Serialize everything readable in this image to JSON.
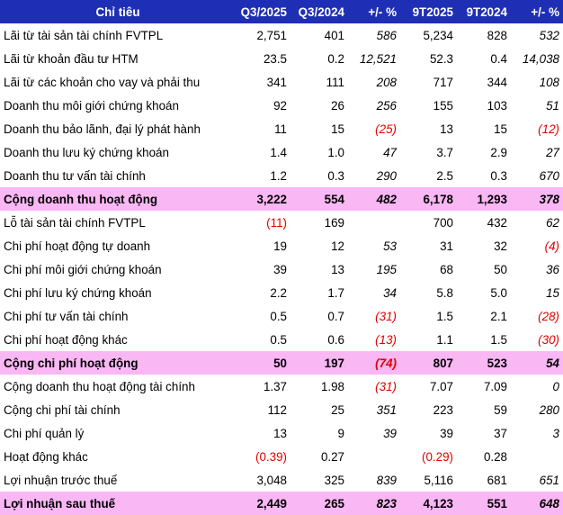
{
  "table": {
    "headers": [
      "Chỉ tiêu",
      "Q3/2025",
      "Q3/2024",
      "+/- %",
      "9T2025",
      "9T2024",
      "+/- %"
    ],
    "rows": [
      {
        "label": "Lãi từ tài sản tài chính FVTPL",
        "total": false,
        "values": [
          "2,751",
          "401",
          "586",
          "5,234",
          "828",
          "532"
        ]
      },
      {
        "label": "Lãi từ khoản đầu tư HTM",
        "total": false,
        "values": [
          "23.5",
          "0.2",
          "12,521",
          "52.3",
          "0.4",
          "14,038"
        ]
      },
      {
        "label": "Lãi từ các khoản cho vay và phải thu",
        "total": false,
        "values": [
          "341",
          "111",
          "208",
          "717",
          "344",
          "108"
        ]
      },
      {
        "label": "Doanh thu môi giới chứng khoán",
        "total": false,
        "values": [
          "92",
          "26",
          "256",
          "155",
          "103",
          "51"
        ]
      },
      {
        "label": "Doanh thu bảo lãnh, đại lý phát hành",
        "total": false,
        "values": [
          "11",
          "15",
          "(25)",
          "13",
          "15",
          "(12)"
        ]
      },
      {
        "label": "Doanh thu lưu ký chứng khoán",
        "total": false,
        "values": [
          "1.4",
          "1.0",
          "47",
          "3.7",
          "2.9",
          "27"
        ]
      },
      {
        "label": "Doanh thu tư vấn tài chính",
        "total": false,
        "values": [
          "1.2",
          "0.3",
          "290",
          "2.5",
          "0.3",
          "670"
        ]
      },
      {
        "label": "Cộng doanh thu hoạt động",
        "total": true,
        "values": [
          "3,222",
          "554",
          "482",
          "6,178",
          "1,293",
          "378"
        ]
      },
      {
        "label": "Lỗ tài sản tài chính FVTPL",
        "total": false,
        "values": [
          "(11)",
          "169",
          "",
          "700",
          "432",
          "62"
        ]
      },
      {
        "label": "Chi phí hoạt động tự doanh",
        "total": false,
        "values": [
          "19",
          "12",
          "53",
          "31",
          "32",
          "(4)"
        ]
      },
      {
        "label": "Chi phí môi giới chứng khoán",
        "total": false,
        "values": [
          "39",
          "13",
          "195",
          "68",
          "50",
          "36"
        ]
      },
      {
        "label": "Chi phí lưu ký chứng khoán",
        "total": false,
        "values": [
          "2.2",
          "1.7",
          "34",
          "5.8",
          "5.0",
          "15"
        ]
      },
      {
        "label": "Chi phí tư vấn tài chính",
        "total": false,
        "values": [
          "0.5",
          "0.7",
          "(31)",
          "1.5",
          "2.1",
          "(28)"
        ]
      },
      {
        "label": "Chi phí hoạt động khác",
        "total": false,
        "values": [
          "0.5",
          "0.6",
          "(13)",
          "1.1",
          "1.5",
          "(30)"
        ]
      },
      {
        "label": "Cộng chi phí hoạt động",
        "total": true,
        "values": [
          "50",
          "197",
          "(74)",
          "807",
          "523",
          "54"
        ]
      },
      {
        "label": "Cộng doanh thu hoạt động tài chính",
        "total": false,
        "values": [
          "1.37",
          "1.98",
          "(31)",
          "7.07",
          "7.09",
          "0"
        ]
      },
      {
        "label": "Cộng chi phí tài chính",
        "total": false,
        "values": [
          "112",
          "25",
          "351",
          "223",
          "59",
          "280"
        ]
      },
      {
        "label": "Chi phí quản lý",
        "total": false,
        "values": [
          "13",
          "9",
          "39",
          "39",
          "37",
          "3"
        ]
      },
      {
        "label": "Hoạt động khác",
        "total": false,
        "values": [
          "(0.39)",
          "0.27",
          "",
          "(0.29)",
          "0.28",
          ""
        ]
      },
      {
        "label": "Lợi nhuận trước thuế",
        "total": false,
        "values": [
          "3,048",
          "325",
          "839",
          "5,116",
          "681",
          "651"
        ]
      },
      {
        "label": "Lợi nhuận sau thuế",
        "total": true,
        "values": [
          "2,449",
          "265",
          "823",
          "4,123",
          "551",
          "648"
        ]
      }
    ]
  },
  "colors": {
    "header_background": "#1f2fb5",
    "header_text": "#ffffff",
    "total_row_background": "#f9b7f4",
    "negative_text": "#e00000"
  }
}
